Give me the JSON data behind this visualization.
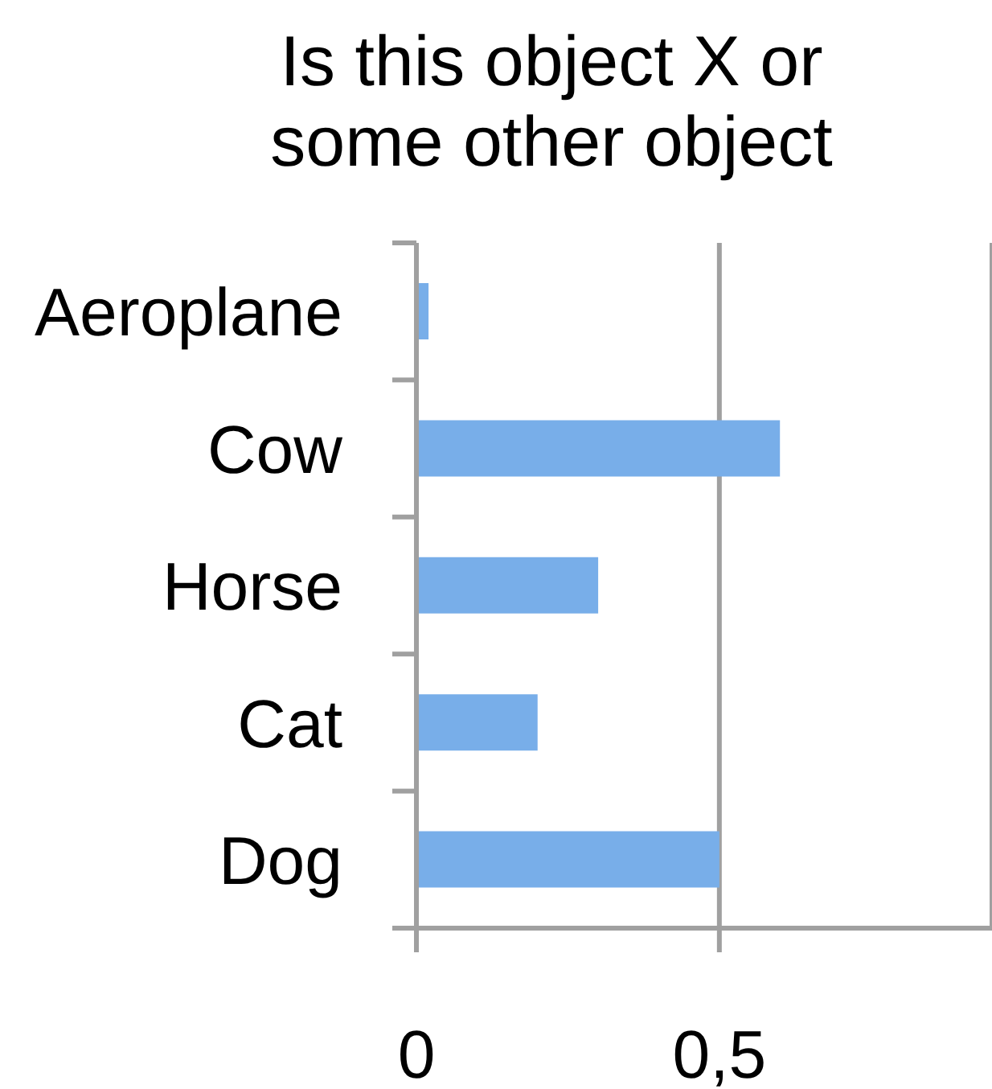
{
  "chart_data": {
    "type": "bar",
    "orientation": "horizontal",
    "title": "Is this object X or some other object",
    "categories": [
      "Aeroplane",
      "Cow",
      "Horse",
      "Cat",
      "Dog"
    ],
    "values": [
      0.02,
      0.6,
      0.3,
      0.2,
      0.5
    ],
    "color": "#78aee9",
    "xlim": [
      0,
      0.95
    ],
    "xticks": [
      0,
      {
        "value": 0.5,
        "label": "0,5"
      }
    ],
    "grid": "x"
  }
}
